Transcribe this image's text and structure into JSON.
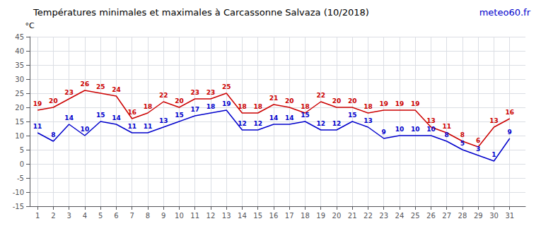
{
  "chart_data": {
    "type": "line",
    "title": "Températures minimales et maximales à Carcassonne Salvaza (10/2018)",
    "ylabel": "°C",
    "annotations": [
      "meteo60.fr"
    ],
    "x": [
      1,
      2,
      3,
      4,
      5,
      6,
      7,
      8,
      9,
      10,
      11,
      12,
      13,
      14,
      15,
      16,
      17,
      18,
      19,
      20,
      21,
      22,
      23,
      24,
      25,
      26,
      27,
      28,
      29,
      30,
      31
    ],
    "series": [
      {
        "color": "#0000cc",
        "values": [
          11,
          8,
          14,
          10,
          15,
          14,
          11,
          11,
          13,
          15,
          17,
          18,
          19,
          12,
          12,
          14,
          14,
          15,
          12,
          12,
          15,
          13,
          9,
          10,
          10,
          10,
          8,
          5,
          3,
          1,
          9
        ]
      },
      {
        "color": "#cc0000",
        "values": [
          19,
          20,
          23,
          26,
          25,
          24,
          16,
          18,
          22,
          20,
          23,
          23,
          25,
          18,
          18,
          21,
          20,
          18,
          22,
          20,
          20,
          18,
          19,
          19,
          19,
          13,
          11,
          8,
          6,
          13,
          16
        ]
      }
    ],
    "xlim": [
      0.5,
      32
    ],
    "xticks": [
      1,
      2,
      3,
      4,
      5,
      6,
      7,
      8,
      9,
      10,
      11,
      12,
      13,
      14,
      15,
      16,
      17,
      18,
      19,
      20,
      21,
      22,
      23,
      24,
      25,
      26,
      27,
      28,
      29,
      30,
      31
    ],
    "ylim": [
      -15,
      45
    ],
    "yticks": [
      -15,
      -10,
      -5,
      0,
      5,
      10,
      15,
      20,
      25,
      30,
      35,
      40,
      45
    ],
    "grid": true,
    "data_labels": true
  }
}
